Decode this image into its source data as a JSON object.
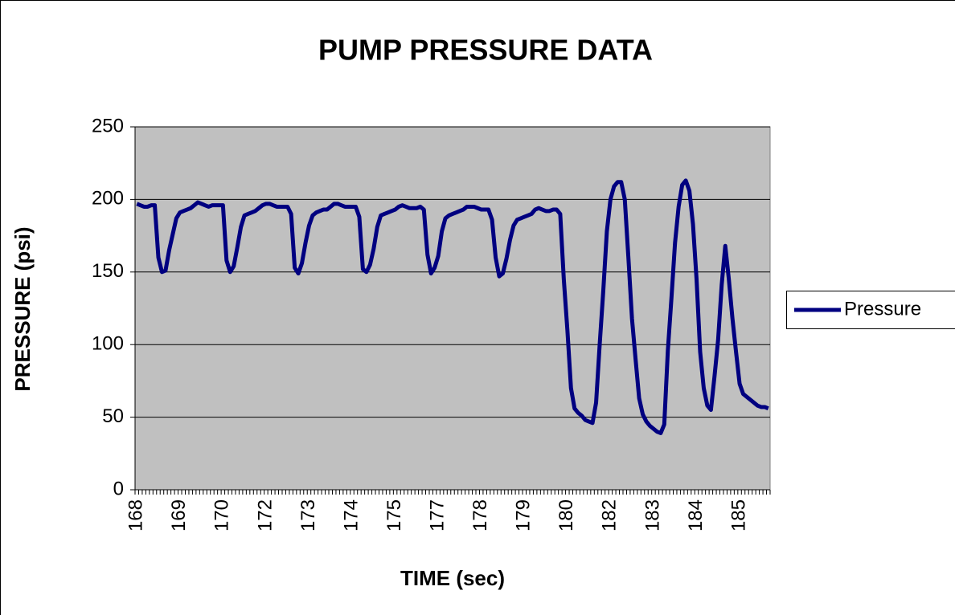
{
  "chart_data": {
    "type": "line",
    "title": "PUMP PRESSURE DATA",
    "x_label": "TIME (sec)",
    "y_label": "PRESSURE (psi)",
    "categories": [
      "168",
      null,
      null,
      null,
      null,
      null,
      null,
      null,
      null,
      null,
      null,
      null,
      "169",
      null,
      null,
      null,
      null,
      null,
      null,
      null,
      null,
      null,
      null,
      null,
      "170",
      null,
      null,
      null,
      null,
      null,
      null,
      null,
      null,
      null,
      null,
      null,
      "172",
      null,
      null,
      null,
      null,
      null,
      null,
      null,
      null,
      null,
      null,
      null,
      "173",
      null,
      null,
      null,
      null,
      null,
      null,
      null,
      null,
      null,
      null,
      null,
      "174",
      null,
      null,
      null,
      null,
      null,
      null,
      null,
      null,
      null,
      null,
      null,
      "175",
      null,
      null,
      null,
      null,
      null,
      null,
      null,
      null,
      null,
      null,
      null,
      "177",
      null,
      null,
      null,
      null,
      null,
      null,
      null,
      null,
      null,
      null,
      null,
      "178",
      null,
      null,
      null,
      null,
      null,
      null,
      null,
      null,
      null,
      null,
      null,
      "179",
      null,
      null,
      null,
      null,
      null,
      null,
      null,
      null,
      null,
      null,
      null,
      "180",
      null,
      null,
      null,
      null,
      null,
      null,
      null,
      null,
      null,
      null,
      null,
      "182",
      null,
      null,
      null,
      null,
      null,
      null,
      null,
      null,
      null,
      null,
      null,
      "183",
      null,
      null,
      null,
      null,
      null,
      null,
      null,
      null,
      null,
      null,
      null,
      "184",
      null,
      null,
      null,
      null,
      null,
      null,
      null,
      null,
      null,
      null,
      null,
      "185",
      null,
      null,
      null,
      null,
      null,
      null,
      null,
      null
    ],
    "series": [
      {
        "name": "Pressure",
        "color": "#000080",
        "values": [
          197,
          196,
          195,
          195,
          196,
          196,
          160,
          150,
          151,
          165,
          176,
          187,
          191,
          192,
          193,
          194,
          196,
          198,
          197,
          196,
          195,
          196,
          196,
          196,
          196,
          158,
          150,
          154,
          167,
          181,
          189,
          190,
          191,
          192,
          194,
          196,
          197,
          197,
          196,
          195,
          195,
          195,
          195,
          190,
          153,
          149,
          156,
          170,
          182,
          189,
          191,
          192,
          193,
          193,
          195,
          197,
          197,
          196,
          195,
          195,
          195,
          195,
          188,
          152,
          150,
          155,
          166,
          181,
          189,
          190,
          191,
          192,
          193,
          195,
          196,
          195,
          194,
          194,
          194,
          195,
          193,
          162,
          149,
          153,
          161,
          178,
          187,
          189,
          190,
          191,
          192,
          193,
          195,
          195,
          195,
          194,
          193,
          193,
          193,
          186,
          160,
          147,
          149,
          159,
          172,
          182,
          186,
          187,
          188,
          189,
          190,
          193,
          194,
          193,
          192,
          192,
          193,
          193,
          190,
          145,
          110,
          70,
          56,
          53,
          51,
          48,
          47,
          46,
          60,
          100,
          137,
          178,
          200,
          209,
          212,
          212,
          200,
          160,
          118,
          90,
          63,
          52,
          47,
          44,
          42,
          40,
          39,
          45,
          96,
          132,
          170,
          195,
          210,
          213,
          206,
          183,
          145,
          95,
          70,
          58,
          55,
          78,
          103,
          141,
          168,
          145,
          118,
          95,
          73,
          66,
          64,
          62,
          60,
          58,
          57,
          57,
          56
        ]
      }
    ],
    "ylim": [
      0,
      250
    ],
    "yticks": [
      0,
      50,
      100,
      150,
      200,
      250
    ],
    "grid": true,
    "legend": "right",
    "plot_background": "#c0c0c0"
  }
}
